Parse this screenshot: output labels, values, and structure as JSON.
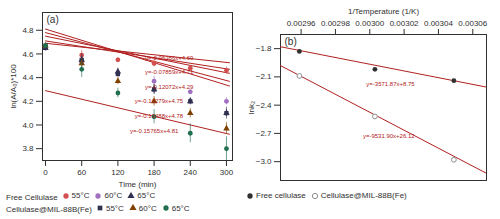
{
  "chart_data": [
    {
      "type": "scatter",
      "title": "(a)",
      "x_label": "Time (min)",
      "y_label": "ln(A/A₀)*100",
      "xlim": [
        -5,
        310
      ],
      "ylim": [
        3.7,
        4.95
      ],
      "xticks": [
        0,
        60,
        120,
        180,
        240,
        300
      ],
      "yticks": [
        3.8,
        {
          "value": 4.0,
          "label": "4.0"
        },
        4.2,
        4.4,
        4.6,
        4.8
      ],
      "x": [
        0,
        60,
        120,
        180,
        240,
        300
      ],
      "series": [
        {
          "type": "line",
          "color": "#b22020",
          "x": [
            0,
            305
          ],
          "values": [
            4.69,
            4.525727
          ]
        },
        {
          "type": "line",
          "color": "#b22020",
          "x": [
            0,
            305
          ],
          "values": [
            4.71,
            4.4703005
          ]
        },
        {
          "type": "line",
          "color": "#b22020",
          "x": [
            0,
            305
          ],
          "values": [
            4.29,
            3.921804
          ]
        },
        {
          "type": "line",
          "color": "#b22020",
          "x": [
            0,
            305
          ],
          "values": [
            4.75,
            4.4364905
          ]
        },
        {
          "type": "line",
          "color": "#b22020",
          "x": [
            0,
            305
          ],
          "values": [
            4.78,
            4.368616
          ]
        },
        {
          "type": "line",
          "color": "#b22020",
          "x": [
            0,
            305
          ],
          "values": [
            4.81,
            4.3291675
          ]
        },
        {
          "name": "55°C",
          "group": "Free Cellulase",
          "type": "scatter",
          "color": "#d45050",
          "marker": "circle",
          "values": [
            4.65,
            4.59,
            4.55,
            4.52,
            4.48,
            4.46
          ],
          "yerr": [
            0.01,
            0.04,
            0.02,
            0.03,
            0.02,
            0.03
          ]
        },
        {
          "name": "60°C",
          "group": "Free Cellulase",
          "type": "scatter",
          "color": "#a070c0",
          "marker": "circle",
          "values": [
            4.65,
            4.53,
            4.43,
            4.37,
            4.28,
            4.2
          ],
          "yerr": [
            0.01,
            0.04,
            0.02,
            0.04,
            0.02,
            0.03
          ]
        },
        {
          "name": "65°C",
          "group": "Free Cellulase",
          "type": "scatter",
          "color": "#303050",
          "marker": "triangle",
          "values": [
            4.65,
            4.55,
            4.45,
            4.3,
            4.2,
            4.1
          ],
          "yerr": [
            0.02,
            0.05,
            0.03,
            0.04,
            0.03,
            0.05
          ]
        },
        {
          "name": "55°C",
          "group": "Cellulase@MIL-88B(Fe)",
          "type": "scatter",
          "color": "#303050",
          "marker": "square",
          "values": [
            4.67,
            4.55,
            4.43,
            4.3,
            4.2,
            4.1
          ],
          "yerr": [
            0.01,
            0.03,
            0.02,
            0.04,
            0.02,
            0.03
          ]
        },
        {
          "name": "60°C",
          "group": "Cellulase@MIL-88B(Fe)",
          "type": "scatter",
          "color": "#804000",
          "marker": "triangle",
          "values": [
            4.67,
            4.52,
            4.37,
            4.2,
            4.1,
            3.97
          ],
          "yerr": [
            0.02,
            0.04,
            0.03,
            0.04,
            0.04,
            0.05
          ]
        },
        {
          "name": "65°C",
          "group": "Cellulase@MIL-88B(Fe)",
          "type": "scatter",
          "color": "#207050",
          "marker": "circle",
          "values": [
            4.67,
            4.47,
            4.27,
            4.07,
            3.93,
            3.8
          ],
          "yerr": [
            0.02,
            0.07,
            0.04,
            0.06,
            0.08,
            0.1
          ]
        }
      ],
      "annotations": [
        {
          "text": "y=-0.05386x+4.69",
          "x": 165,
          "y": 4.545,
          "color": "#b22020"
        },
        {
          "text": "y=-0.07859x+4.71",
          "x": 165,
          "y": 4.43,
          "color": "#b22020"
        },
        {
          "text": "y=-0.12072x+4.29",
          "x": 165,
          "y": 4.3,
          "color": "#b22020"
        },
        {
          "text": "y=-0.10279x+4.75",
          "x": 148,
          "y": 4.185,
          "color": "#b22020"
        },
        {
          "text": "y=-0.13488x+4.78",
          "x": 148,
          "y": 4.055,
          "color": "#b22020"
        },
        {
          "text": "y=-0.15765x+4.81",
          "x": 140,
          "y": 3.93,
          "color": "#b22020"
        }
      ]
    },
    {
      "type": "scatter",
      "title": "(b)",
      "x_label": "1/Temperature (1/K)",
      "y_label": "lnk₂",
      "xlim": [
        0.002948,
        0.003068
      ],
      "ylim": [
        -3.2,
        -1.65
      ],
      "xticks": [
        0.00296,
        0.00298,
        {
          "value": 0.003,
          "label": "0.00300"
        },
        0.00302,
        0.00304,
        0.00306
      ],
      "yticks": [
        {
          "value": -3.0,
          "label": "−3.0"
        },
        -2.7,
        -2.4,
        -2.1,
        -1.8
      ],
      "series": [
        {
          "type": "line",
          "color": "#b22020",
          "x": [
            0.002948,
            0.003068
          ],
          "values": [
            -1.77987276,
            -2.20849716
          ]
        },
        {
          "name": "Free cellulase",
          "type": "scatter",
          "color": "#303030",
          "marker": "circle",
          "x": [
            0.002959,
            0.003003,
            0.003049
          ],
          "values": [
            -1.83,
            -2.02,
            -2.14
          ]
        },
        {
          "type": "line",
          "color": "#b22020",
          "x": [
            0.002948,
            0.003068
          ],
          "values": [
            -1.9800412,
            -3.1238692
          ]
        },
        {
          "name": "Cellulase@MIL-88B(Fe)",
          "type": "scatter",
          "color": "#909090",
          "marker": "open_circle",
          "x": [
            0.002959,
            0.003003,
            0.003049
          ],
          "values": [
            -2.09,
            -2.52,
            -2.98
          ]
        }
      ],
      "annotations": [
        {
          "text": "y=-3571.87x+8.75",
          "x": 0.002998,
          "y": -2.2,
          "color": "#b22020"
        },
        {
          "text": "y=-9531.90x+26.12",
          "x": 0.002996,
          "y": -2.75,
          "color": "#b22020"
        }
      ]
    }
  ]
}
